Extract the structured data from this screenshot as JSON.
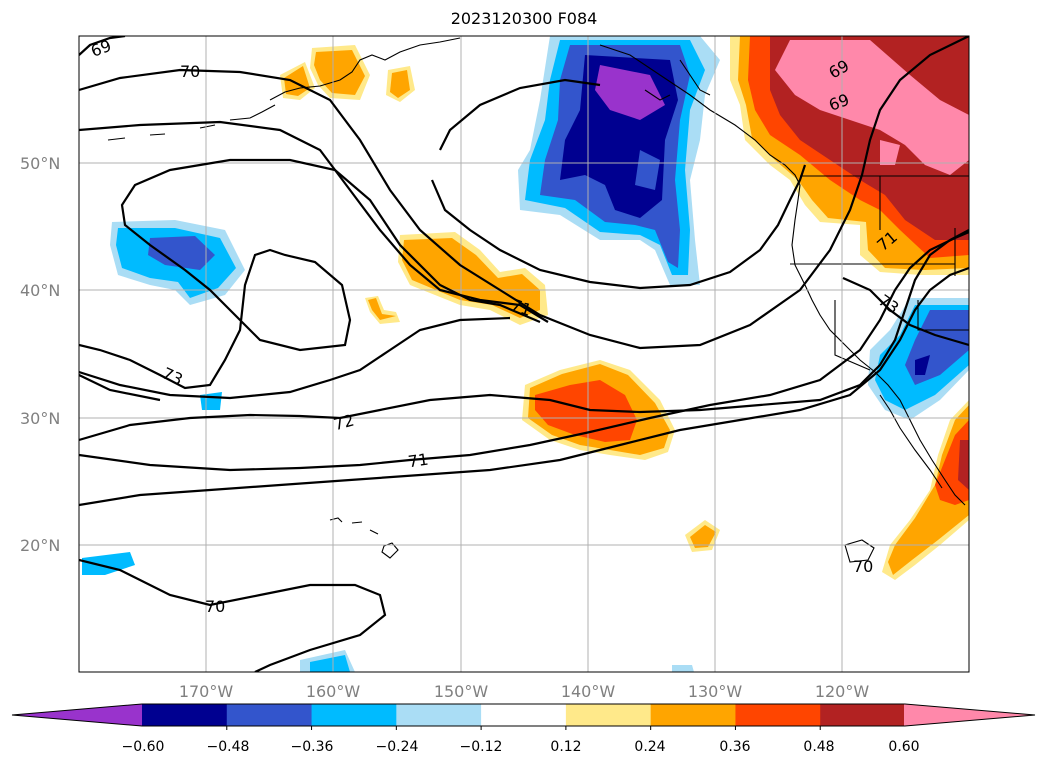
{
  "title": "2023120300 F084",
  "map": {
    "lat_labels": [
      "50°N",
      "40°N",
      "30°N",
      "20°N"
    ],
    "lon_labels": [
      "170°W",
      "160°W",
      "150°W",
      "140°W",
      "130°W",
      "120°W"
    ],
    "contour_labels": [
      "69",
      "70",
      "71",
      "72",
      "73",
      "69",
      "69",
      "70",
      "71",
      "73",
      "71",
      "70"
    ]
  },
  "colorbar": {
    "ticks": [
      "−0.60",
      "−0.48",
      "−0.36",
      "−0.24",
      "−0.12",
      "0.12",
      "0.24",
      "0.36",
      "0.48",
      "0.60"
    ],
    "colors": [
      "#9933cc",
      "#000090",
      "#3355cc",
      "#00bbff",
      "#aaddf5",
      "#ffffff",
      "#ffe98a",
      "#ffa500",
      "#ff4500",
      "#b22222",
      "#ff88aa"
    ]
  }
}
